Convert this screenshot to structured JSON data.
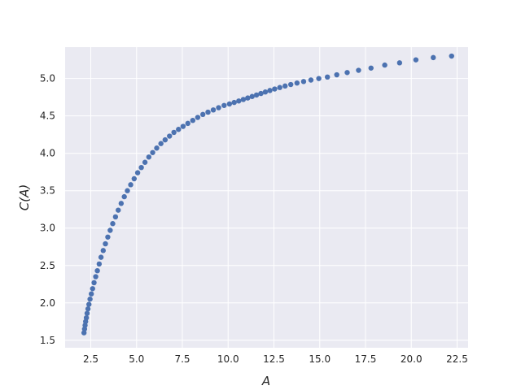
{
  "chart_data": {
    "type": "scatter",
    "xlabel": "A",
    "ylabel": "C(A)",
    "xlim": [
      1.1,
      23.1
    ],
    "ylim": [
      1.4,
      5.42
    ],
    "x_ticks": [
      2.5,
      5.0,
      7.5,
      10.0,
      12.5,
      15.0,
      17.5,
      20.0,
      22.5
    ],
    "x_tick_labels": [
      "2.5",
      "5.0",
      "7.5",
      "10.0",
      "12.5",
      "15.0",
      "17.5",
      "20.0",
      "22.5"
    ],
    "y_ticks": [
      1.5,
      2.0,
      2.5,
      3.0,
      3.5,
      4.0,
      4.5,
      5.0
    ],
    "y_tick_labels": [
      "1.5",
      "2.0",
      "2.5",
      "3.0",
      "3.5",
      "4.0",
      "4.5",
      "5.0"
    ],
    "grid": true,
    "legend": "none",
    "colors": {
      "background": "#eaeaf2",
      "grid": "#ffffff",
      "marker": "#4c72b0"
    },
    "series": [
      {
        "x": [
          2.13,
          2.16,
          2.19,
          2.22,
          2.26,
          2.3,
          2.35,
          2.4,
          2.46,
          2.53,
          2.6,
          2.68,
          2.77,
          2.86,
          2.96,
          3.06,
          3.18,
          3.3,
          3.43,
          3.56,
          3.7,
          3.85,
          4.0,
          4.16,
          4.33,
          4.5,
          4.68,
          4.87,
          5.06,
          5.26,
          5.46,
          5.67,
          5.88,
          6.1,
          6.33,
          6.56,
          6.8,
          7.04,
          7.29,
          7.54,
          7.8,
          8.07,
          8.34,
          8.62,
          8.9,
          9.19,
          9.48,
          9.78,
          10.07,
          10.33,
          10.58,
          10.83,
          11.07,
          11.31,
          11.55,
          11.79,
          12.03,
          12.28,
          12.54,
          12.82,
          13.11,
          13.42,
          13.76,
          14.12,
          14.52,
          14.95,
          15.42,
          15.93,
          16.5,
          17.12,
          17.8,
          18.55,
          19.36,
          20.25,
          21.2,
          22.2
        ],
        "y": [
          1.6,
          1.65,
          1.7,
          1.75,
          1.8,
          1.86,
          1.92,
          1.98,
          2.05,
          2.12,
          2.19,
          2.27,
          2.35,
          2.43,
          2.52,
          2.61,
          2.7,
          2.79,
          2.88,
          2.97,
          3.06,
          3.15,
          3.24,
          3.33,
          3.42,
          3.5,
          3.58,
          3.66,
          3.74,
          3.81,
          3.88,
          3.95,
          4.01,
          4.07,
          4.13,
          4.18,
          4.23,
          4.28,
          4.32,
          4.36,
          4.4,
          4.44,
          4.48,
          4.52,
          4.55,
          4.58,
          4.61,
          4.64,
          4.66,
          4.68,
          4.7,
          4.72,
          4.74,
          4.76,
          4.78,
          4.8,
          4.82,
          4.84,
          4.86,
          4.88,
          4.9,
          4.92,
          4.94,
          4.96,
          4.98,
          5.0,
          5.02,
          5.05,
          5.08,
          5.11,
          5.14,
          5.18,
          5.21,
          5.25,
          5.28,
          5.3
        ]
      }
    ]
  }
}
